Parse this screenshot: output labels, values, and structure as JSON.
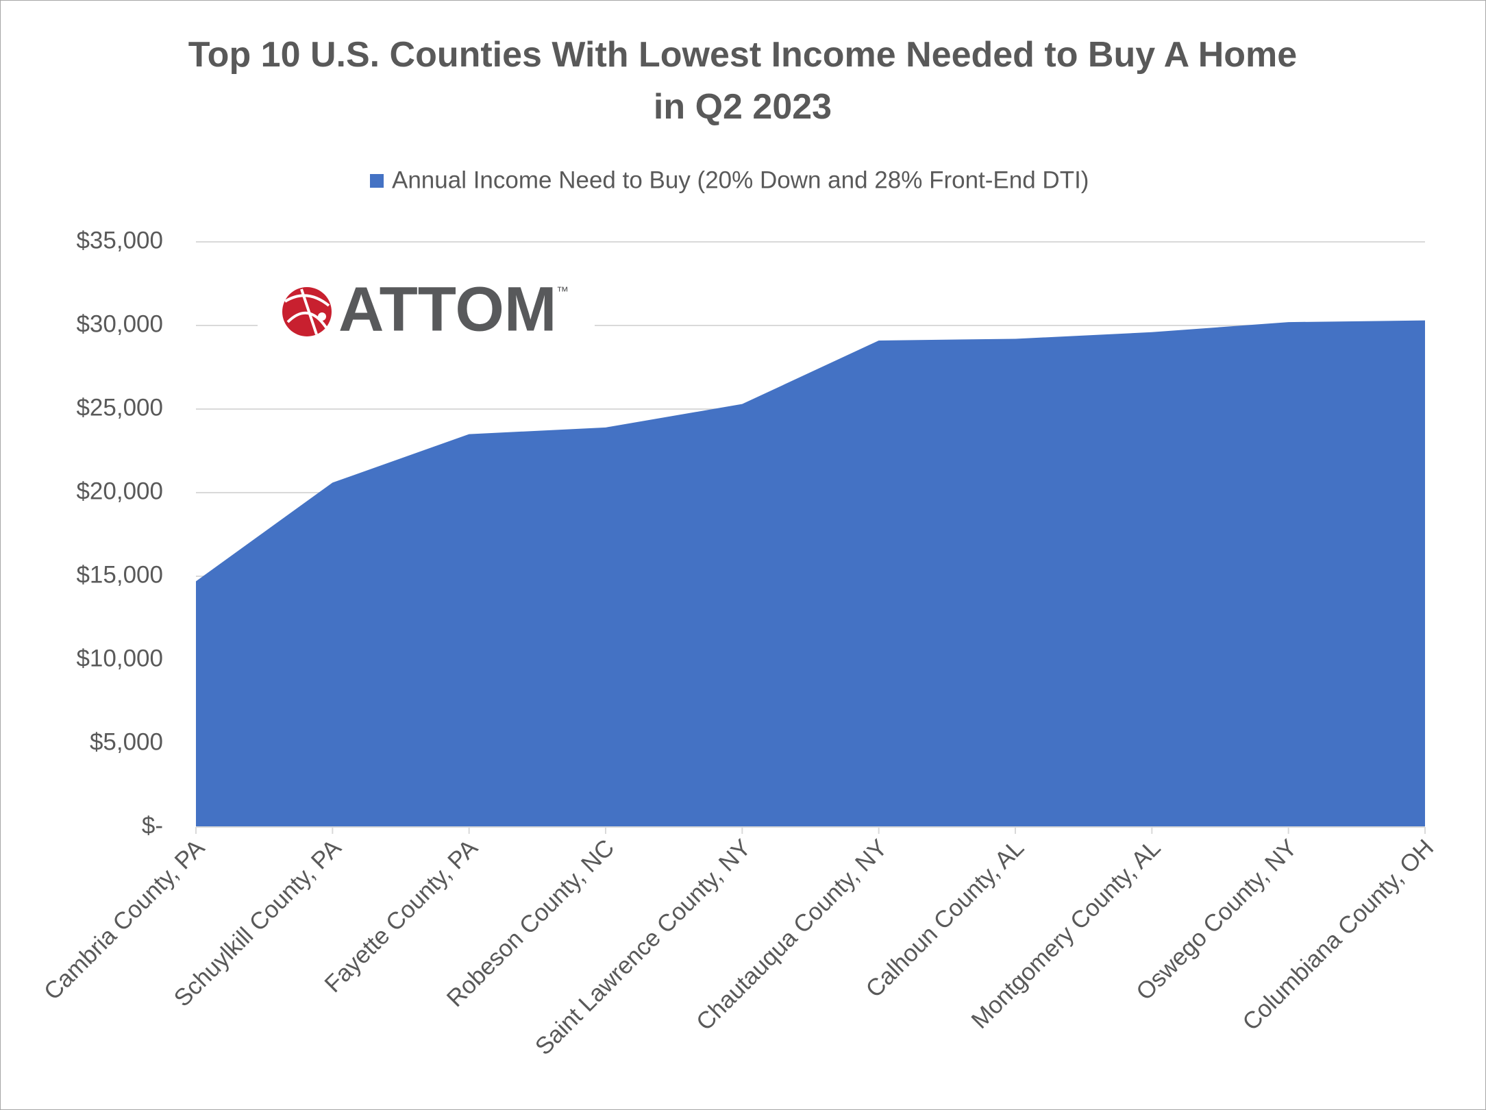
{
  "chart_data": {
    "type": "area",
    "title": "Top 10 U.S. Counties With Lowest Income Needed to Buy A Home in Q2 2023",
    "logo_text": "ATTOM",
    "logo_mark": "™",
    "categories": [
      "Cambria County, PA",
      "Schuylkill County, PA",
      "Fayette County, PA",
      "Robeson County, NC",
      "Saint Lawrence County, NY",
      "Chautauqua County, NY",
      "Calhoun County, AL",
      "Montgomery County, AL",
      "Oswego County, NY",
      "Columbiana County, OH"
    ],
    "series": [
      {
        "name": "Annual Income Need to Buy (20% Down and 28% Front-End DTI)",
        "color": "#4472c4",
        "values": [
          14700,
          20600,
          23500,
          23900,
          25300,
          29100,
          29200,
          29600,
          30200,
          30300
        ]
      }
    ],
    "ylim": [
      0,
      35000
    ],
    "yticks": [
      {
        "value": 0,
        "label": "$-"
      },
      {
        "value": 5000,
        "label": "$5,000"
      },
      {
        "value": 10000,
        "label": "$10,000"
      },
      {
        "value": 15000,
        "label": "$15,000"
      },
      {
        "value": 20000,
        "label": "$20,000"
      },
      {
        "value": 25000,
        "label": "$25,000"
      },
      {
        "value": 30000,
        "label": "$30,000"
      },
      {
        "value": 35000,
        "label": "$35,000"
      }
    ],
    "grid": true,
    "legend": "top"
  }
}
